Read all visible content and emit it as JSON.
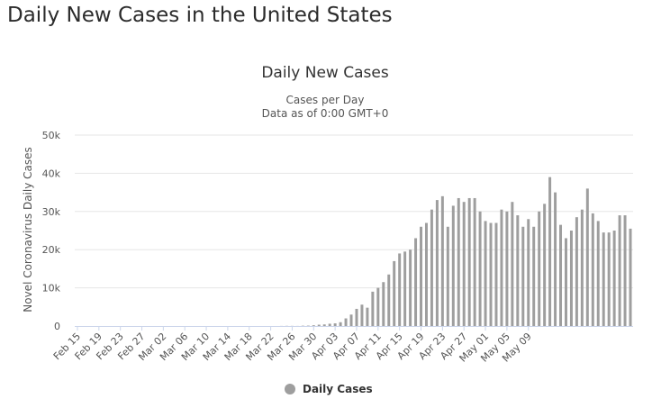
{
  "page": {
    "heading": "Daily New Cases in the United States"
  },
  "chart_data": {
    "type": "bar",
    "title": "Daily New Cases",
    "subtitle_lines": [
      "Cases per Day",
      "Data as of 0:00 GMT+0"
    ],
    "ylabel": "Novel Coronavirus Daily Cases",
    "xlabel": "",
    "ylim": [
      0,
      50000
    ],
    "ytick_values": [
      0,
      10000,
      20000,
      30000,
      40000,
      50000
    ],
    "ytick_labels": [
      "0",
      "10k",
      "20k",
      "30k",
      "40k",
      "50k"
    ],
    "grid": true,
    "legend_position": "bottom-center",
    "series": [
      {
        "name": "Daily Cases",
        "color": "#9e9e9e",
        "values": [
          0,
          0,
          0,
          0,
          0,
          0,
          0,
          0,
          0,
          0,
          0,
          0,
          0,
          0,
          0,
          0,
          0,
          0,
          0,
          0,
          0,
          0,
          0,
          0,
          0,
          0,
          0,
          0,
          0,
          0,
          0,
          0,
          0,
          0,
          0,
          0,
          0,
          0,
          20,
          40,
          30,
          20,
          80,
          100,
          200,
          350,
          420,
          600,
          700,
          1000,
          2000,
          3000,
          4500,
          5600,
          4800,
          9000,
          10000,
          11500,
          13500,
          17000,
          19000,
          19500,
          20000,
          23000,
          26000,
          27000,
          30500,
          33000,
          34000,
          26000,
          31500,
          33500,
          32500,
          33500,
          33500,
          30000,
          27500,
          27000,
          27000,
          30500,
          30000,
          32500,
          29000,
          26000,
          28000,
          26000,
          30000,
          32000,
          39000,
          35000,
          26500,
          23000,
          25000,
          28500,
          30500,
          36000,
          29500,
          27500,
          24500,
          24500,
          25000,
          29000,
          29000,
          25500
        ]
      }
    ],
    "tick_labels": [
      "Feb 15",
      "Feb 19",
      "Feb 23",
      "Feb 27",
      "Mar 02",
      "Mar 06",
      "Mar 10",
      "Mar 14",
      "Mar 18",
      "Mar 22",
      "Mar 26",
      "Mar 30",
      "Apr 03",
      "Apr 07",
      "Apr 11",
      "Apr 15",
      "Apr 19",
      "Apr 23",
      "Apr 27",
      "May 01",
      "May 05",
      "May 09"
    ],
    "tick_every": 4
  }
}
